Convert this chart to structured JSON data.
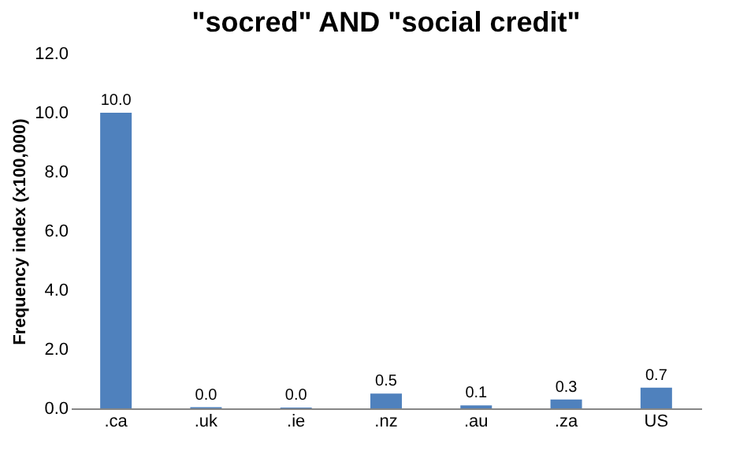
{
  "chart_data": {
    "type": "bar",
    "title": "\"socred\" AND \"social credit\"",
    "ylabel": "Frequency index (x100,000)",
    "categories": [
      ".ca",
      ".uk",
      ".ie",
      ".nz",
      ".au",
      ".za",
      "US"
    ],
    "values": [
      10.0,
      0.04,
      0.03,
      0.5,
      0.1,
      0.3,
      0.7
    ],
    "value_labels": [
      "10.0",
      "0.0",
      "0.0",
      "0.5",
      "0.1",
      "0.3",
      "0.7"
    ],
    "color": "#4f81bd",
    "ylim": [
      0,
      12
    ],
    "yticks": [
      {
        "value": 0,
        "label": "0.0"
      },
      {
        "value": 2,
        "label": "2.0"
      },
      {
        "value": 4,
        "label": "4.0"
      },
      {
        "value": 6,
        "label": "6.0"
      },
      {
        "value": 8,
        "label": "8.0"
      },
      {
        "value": 10,
        "label": "10.0"
      },
      {
        "value": 12,
        "label": "12.0"
      }
    ],
    "grid": false
  }
}
